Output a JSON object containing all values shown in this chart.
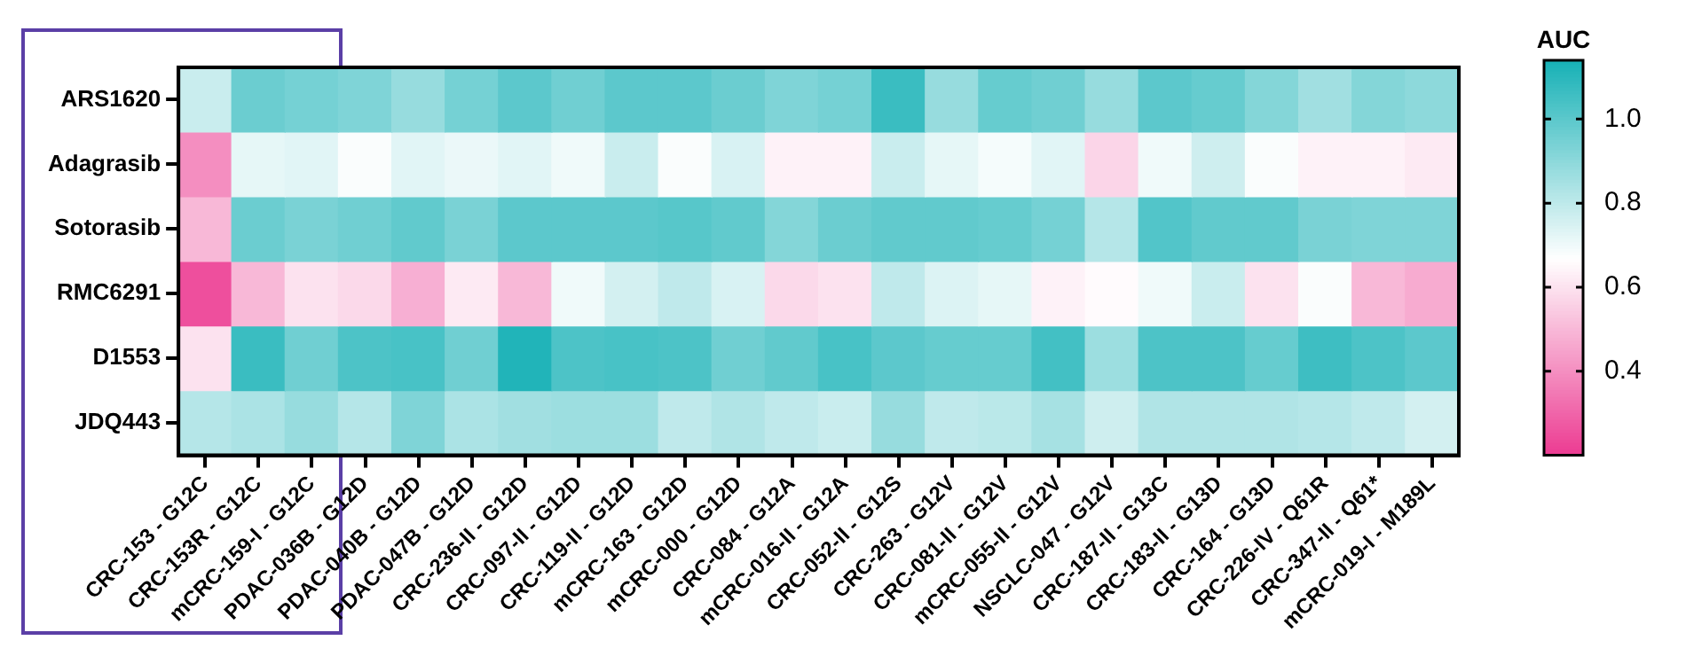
{
  "chart_data": {
    "type": "heatmap",
    "clabel": "AUC",
    "categories": [
      "CRC-153 - G12C",
      "CRC-153R - G12C",
      "mCRC-159-I - G12C",
      "PDAC-036B - G12D",
      "PDAC-040B - G12D",
      "PDAC-047B - G12D",
      "CRC-236-II - G12D",
      "CRC-097-II - G12D",
      "CRC-119-II - G12D",
      "mCRC-163 - G12D",
      "mCRC-000 - G12D",
      "CRC-084 - G12A",
      "mCRC-016-II - G12A",
      "CRC-052-II - G12S",
      "CRC-263 - G12V",
      "CRC-081-II - G12V",
      "mCRC-055-II - G12V",
      "NSCLC-047 - G12V",
      "CRC-187-II - G13C",
      "CRC-183-II - G13D",
      "CRC-164 - G13D",
      "CRC-226-IV - Q61R",
      "CRC-347-II - Q61*",
      "mCRC-019-I - M189L"
    ],
    "y_categories": [
      "ARS1620",
      "Adagrasib",
      "Sotorasib",
      "RMC6291",
      "D1553",
      "JDQ443"
    ],
    "cells": [
      [
        0.78,
        0.97,
        0.95,
        0.93,
        0.88,
        0.95,
        1.0,
        0.96,
        1.0,
        1.0,
        0.97,
        0.93,
        0.95,
        1.07,
        0.88,
        0.98,
        0.96,
        0.88,
        1.0,
        0.98,
        0.92,
        0.86,
        0.92,
        0.9
      ],
      [
        0.4,
        0.72,
        0.73,
        0.68,
        0.73,
        0.71,
        0.73,
        0.7,
        0.78,
        0.68,
        0.75,
        0.64,
        0.64,
        0.78,
        0.72,
        0.69,
        0.73,
        0.57,
        0.7,
        0.77,
        0.68,
        0.64,
        0.64,
        0.62
      ],
      [
        0.5,
        0.97,
        0.94,
        0.96,
        0.99,
        0.94,
        1.0,
        1.0,
        1.0,
        1.01,
        0.99,
        0.92,
        0.97,
        0.99,
        0.99,
        0.98,
        0.95,
        0.82,
        1.02,
        0.99,
        0.99,
        0.94,
        0.93,
        0.93
      ],
      [
        0.25,
        0.5,
        0.6,
        0.58,
        0.48,
        0.62,
        0.5,
        0.7,
        0.76,
        0.8,
        0.75,
        0.58,
        0.6,
        0.8,
        0.74,
        0.72,
        0.64,
        0.66,
        0.7,
        0.78,
        0.6,
        0.68,
        0.5,
        0.47
      ],
      [
        0.6,
        1.07,
        0.96,
        1.03,
        1.04,
        0.96,
        1.12,
        1.03,
        1.04,
        1.03,
        0.96,
        0.99,
        1.04,
        1.0,
        0.98,
        0.98,
        1.05,
        0.87,
        1.03,
        1.03,
        0.98,
        1.06,
        1.03,
        1.0
      ],
      [
        0.82,
        0.84,
        0.88,
        0.82,
        0.93,
        0.84,
        0.86,
        0.87,
        0.87,
        0.8,
        0.83,
        0.8,
        0.78,
        0.88,
        0.8,
        0.81,
        0.85,
        0.77,
        0.83,
        0.83,
        0.83,
        0.82,
        0.8,
        0.76
      ]
    ],
    "clim": [
      0.2,
      1.14
    ],
    "cticks": [
      0.4,
      0.6,
      0.8,
      {
        "value": 1,
        "label": "1.0"
      }
    ]
  }
}
